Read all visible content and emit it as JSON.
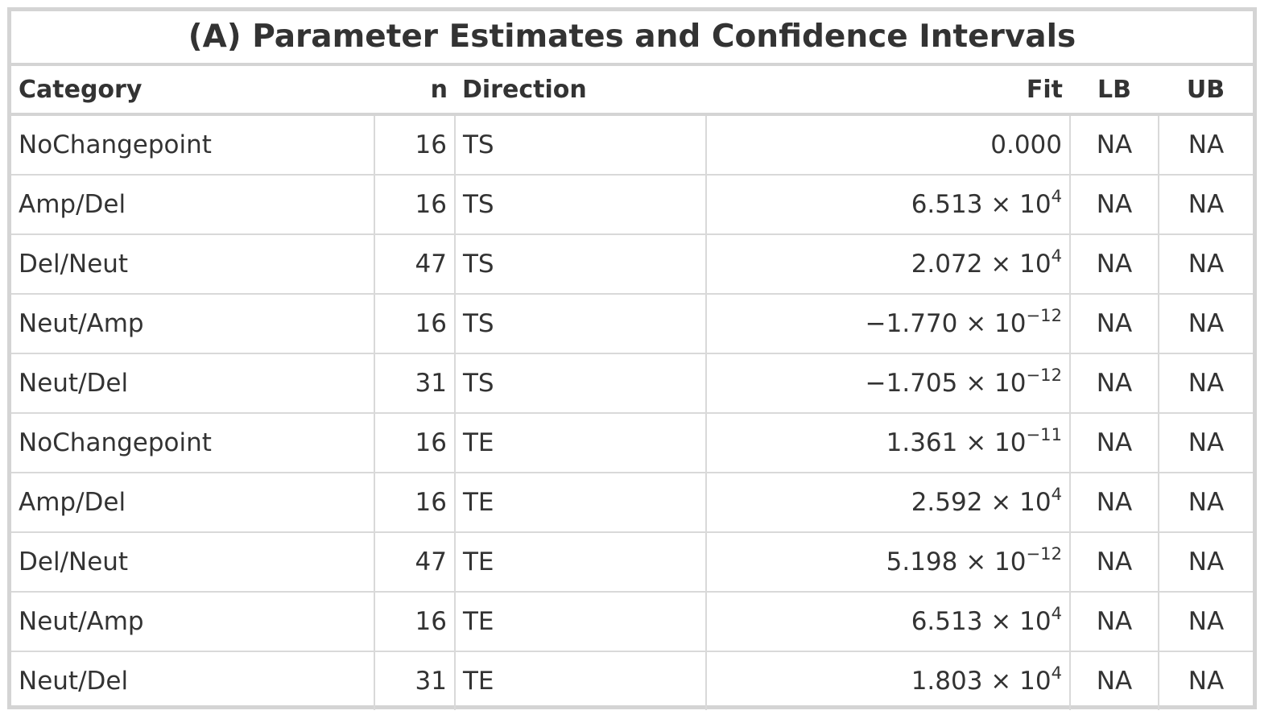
{
  "table": {
    "title": "(A) Parameter Estimates and Confidence Intervals",
    "columns": [
      "Category",
      "n",
      "Direction",
      "Fit",
      "LB",
      "UB"
    ],
    "rows": [
      {
        "category": "NoChangepoint",
        "n": "16",
        "direction": "TS",
        "fit_mantissa": "0.000",
        "fit_exponent": "",
        "lb": "NA",
        "ub": "NA"
      },
      {
        "category": "Amp/Del",
        "n": "16",
        "direction": "TS",
        "fit_mantissa": "6.513 × 10",
        "fit_exponent": "4",
        "lb": "NA",
        "ub": "NA"
      },
      {
        "category": "Del/Neut",
        "n": "47",
        "direction": "TS",
        "fit_mantissa": "2.072 × 10",
        "fit_exponent": "4",
        "lb": "NA",
        "ub": "NA"
      },
      {
        "category": "Neut/Amp",
        "n": "16",
        "direction": "TS",
        "fit_mantissa": "−1.770 × 10",
        "fit_exponent": "−12",
        "lb": "NA",
        "ub": "NA"
      },
      {
        "category": "Neut/Del",
        "n": "31",
        "direction": "TS",
        "fit_mantissa": "−1.705 × 10",
        "fit_exponent": "−12",
        "lb": "NA",
        "ub": "NA"
      },
      {
        "category": "NoChangepoint",
        "n": "16",
        "direction": "TE",
        "fit_mantissa": "1.361 × 10",
        "fit_exponent": "−11",
        "lb": "NA",
        "ub": "NA"
      },
      {
        "category": "Amp/Del",
        "n": "16",
        "direction": "TE",
        "fit_mantissa": "2.592 × 10",
        "fit_exponent": "4",
        "lb": "NA",
        "ub": "NA"
      },
      {
        "category": "Del/Neut",
        "n": "47",
        "direction": "TE",
        "fit_mantissa": "5.198 × 10",
        "fit_exponent": "−12",
        "lb": "NA",
        "ub": "NA"
      },
      {
        "category": "Neut/Amp",
        "n": "16",
        "direction": "TE",
        "fit_mantissa": "6.513 × 10",
        "fit_exponent": "4",
        "lb": "NA",
        "ub": "NA"
      },
      {
        "category": "Neut/Del",
        "n": "31",
        "direction": "TE",
        "fit_mantissa": "1.803 × 10",
        "fit_exponent": "4",
        "lb": "NA",
        "ub": "NA"
      }
    ]
  }
}
